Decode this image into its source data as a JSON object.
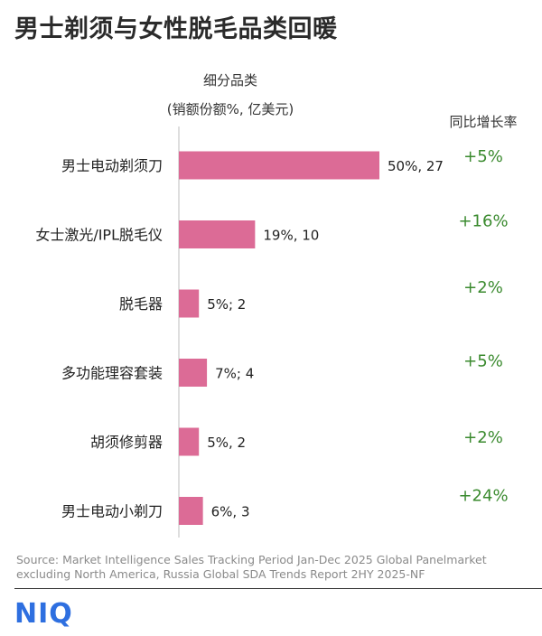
{
  "title": "男士剃须与女性脱毛品类回暖",
  "header": {
    "category_line1": "细分品类",
    "category_line2": "(销额份额%, 亿美元)",
    "growth": "同比增长率"
  },
  "chart_data": {
    "type": "bar",
    "orientation": "horizontal",
    "categories": [
      "男士电动剃须刀",
      "女士激光/IPL脱毛仪",
      "脱毛器",
      "多功能理容套装",
      "胡须修剪器",
      "男士电动小剃刀"
    ],
    "values": [
      50,
      19,
      5,
      7,
      5,
      6
    ],
    "value_labels": [
      "50%, 27",
      "19%, 10",
      "5%; 2",
      "7%; 4",
      "5%, 2",
      "6%, 3"
    ],
    "growth_labels": [
      "+5%",
      "+16%",
      "+2%",
      "+5%",
      "+2%",
      "+24%"
    ],
    "series": [
      {
        "values": [
          50,
          19,
          5,
          7,
          5,
          6
        ]
      }
    ],
    "bar_color": "#dc6b96",
    "growth_color": "#3a8a2e",
    "grid": false
  },
  "source": "Source: Market Intelligence Sales Tracking Period Jan-Dec 2025 Global Panelmarket excluding North America, Russia Global SDA Trends Report 2HY 2025-NF",
  "logo": "NIQ"
}
